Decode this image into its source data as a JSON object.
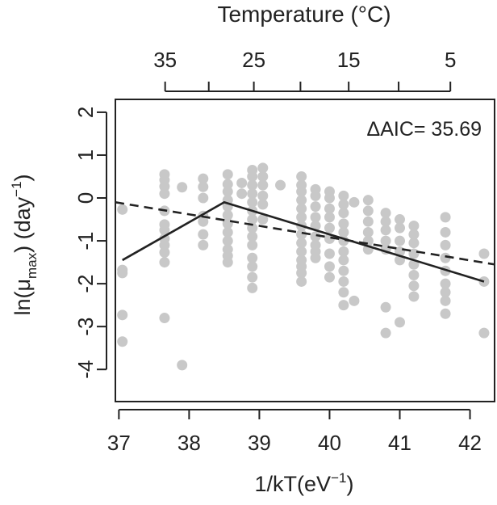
{
  "chart_data": {
    "type": "scatter",
    "title": "",
    "top_axis_label": "Temperature (°C)",
    "top_ticks": [
      "35",
      "25",
      "15",
      "5"
    ],
    "xlabel_main": "1/kT(eV",
    "xlabel_sup": "−1",
    "xlabel_close": ")",
    "ylabel_main": "ln(μ",
    "ylabel_sub": "max",
    "ylabel_mid": ") (day",
    "ylabel_sup": "−1",
    "ylabel_close": ")",
    "annotation": "ΔAIC= 35.69",
    "xlim": [
      36.95,
      42.35
    ],
    "ylim": [
      -4.75,
      2.3
    ],
    "x_ticks": [
      37,
      38,
      39,
      40,
      41,
      42
    ],
    "y_ticks": [
      2,
      1,
      0,
      -1,
      -2,
      -3,
      -4
    ],
    "points_color": "#c8c8c8",
    "line_color": "#222222",
    "points": [
      [
        37.05,
        -0.27
      ],
      [
        37.05,
        -1.68
      ],
      [
        37.05,
        -1.75
      ],
      [
        37.05,
        -2.73
      ],
      [
        37.05,
        -3.35
      ],
      [
        37.65,
        0.55
      ],
      [
        37.65,
        0.42
      ],
      [
        37.65,
        0.27
      ],
      [
        37.65,
        0.1
      ],
      [
        37.65,
        -0.3
      ],
      [
        37.65,
        -0.62
      ],
      [
        37.65,
        -0.75
      ],
      [
        37.65,
        -0.95
      ],
      [
        37.65,
        -1.1
      ],
      [
        37.65,
        -1.27
      ],
      [
        37.65,
        -1.5
      ],
      [
        37.65,
        -2.8
      ],
      [
        37.9,
        0.25
      ],
      [
        37.9,
        -3.9
      ],
      [
        38.2,
        0.45
      ],
      [
        38.2,
        0.26
      ],
      [
        38.2,
        0.0
      ],
      [
        38.2,
        -0.42
      ],
      [
        38.2,
        -0.55
      ],
      [
        38.2,
        -0.85
      ],
      [
        38.2,
        -1.1
      ],
      [
        38.55,
        0.55
      ],
      [
        38.55,
        0.32
      ],
      [
        38.55,
        0.15
      ],
      [
        38.55,
        -0.05
      ],
      [
        38.55,
        -0.2
      ],
      [
        38.55,
        -0.4
      ],
      [
        38.55,
        -0.6
      ],
      [
        38.55,
        -0.8
      ],
      [
        38.55,
        -1.0
      ],
      [
        38.55,
        -1.2
      ],
      [
        38.55,
        -1.35
      ],
      [
        38.55,
        -1.5
      ],
      [
        38.75,
        0.35
      ],
      [
        38.75,
        0.1
      ],
      [
        38.9,
        0.65
      ],
      [
        38.9,
        0.5
      ],
      [
        38.9,
        0.3
      ],
      [
        38.9,
        0.1
      ],
      [
        38.9,
        -0.1
      ],
      [
        38.9,
        -0.3
      ],
      [
        38.9,
        -0.5
      ],
      [
        38.9,
        -0.7
      ],
      [
        38.9,
        -0.9
      ],
      [
        38.9,
        -1.1
      ],
      [
        38.9,
        -1.4
      ],
      [
        38.9,
        -1.6
      ],
      [
        38.9,
        -1.85
      ],
      [
        38.9,
        -2.1
      ],
      [
        39.05,
        0.7
      ],
      [
        39.05,
        0.5
      ],
      [
        39.05,
        0.3
      ],
      [
        39.05,
        0.05
      ],
      [
        39.05,
        -0.15
      ],
      [
        39.05,
        -0.5
      ],
      [
        39.3,
        0.3
      ],
      [
        39.6,
        0.5
      ],
      [
        39.6,
        0.3
      ],
      [
        39.6,
        0.15
      ],
      [
        39.6,
        -0.05
      ],
      [
        39.6,
        -0.25
      ],
      [
        39.6,
        -0.45
      ],
      [
        39.6,
        -0.65
      ],
      [
        39.6,
        -0.85
      ],
      [
        39.6,
        -1.05
      ],
      [
        39.6,
        -1.25
      ],
      [
        39.6,
        -1.45
      ],
      [
        39.6,
        -1.6
      ],
      [
        39.6,
        -1.75
      ],
      [
        39.6,
        -1.95
      ],
      [
        39.8,
        0.2
      ],
      [
        39.8,
        0.05
      ],
      [
        39.8,
        -0.2
      ],
      [
        39.8,
        -0.45
      ],
      [
        39.8,
        -0.65
      ],
      [
        39.8,
        -0.9
      ],
      [
        39.8,
        -1.1
      ],
      [
        39.8,
        -1.25
      ],
      [
        39.8,
        -1.4
      ],
      [
        40.0,
        0.15
      ],
      [
        40.0,
        0.0
      ],
      [
        40.0,
        -0.25
      ],
      [
        40.0,
        -0.45
      ],
      [
        40.0,
        -0.7
      ],
      [
        40.0,
        -0.95
      ],
      [
        40.0,
        -1.3
      ],
      [
        40.0,
        -1.6
      ],
      [
        40.0,
        -1.85
      ],
      [
        40.2,
        0.05
      ],
      [
        40.2,
        -0.15
      ],
      [
        40.2,
        -0.35
      ],
      [
        40.2,
        -0.6
      ],
      [
        40.2,
        -0.8
      ],
      [
        40.2,
        -1.0
      ],
      [
        40.2,
        -1.25
      ],
      [
        40.2,
        -1.45
      ],
      [
        40.2,
        -1.7
      ],
      [
        40.2,
        -1.95
      ],
      [
        40.2,
        -2.2
      ],
      [
        40.2,
        -2.5
      ],
      [
        40.35,
        -0.1
      ],
      [
        40.35,
        -2.4
      ],
      [
        40.55,
        -0.05
      ],
      [
        40.55,
        -0.3
      ],
      [
        40.55,
        -0.55
      ],
      [
        40.55,
        -0.8
      ],
      [
        40.55,
        -1.0
      ],
      [
        40.55,
        -1.2
      ],
      [
        40.8,
        -0.35
      ],
      [
        40.8,
        -0.55
      ],
      [
        40.8,
        -0.75
      ],
      [
        40.8,
        -1.0
      ],
      [
        40.8,
        -1.2
      ],
      [
        40.8,
        -2.55
      ],
      [
        40.8,
        -3.15
      ],
      [
        41.0,
        -0.5
      ],
      [
        41.0,
        -0.7
      ],
      [
        41.0,
        -1.0
      ],
      [
        41.0,
        -1.25
      ],
      [
        41.0,
        -1.45
      ],
      [
        41.0,
        -2.9
      ],
      [
        41.2,
        -0.65
      ],
      [
        41.2,
        -0.85
      ],
      [
        41.2,
        -1.05
      ],
      [
        41.2,
        -1.3
      ],
      [
        41.2,
        -1.55
      ],
      [
        41.2,
        -1.8
      ],
      [
        41.2,
        -2.05
      ],
      [
        41.2,
        -2.3
      ],
      [
        41.65,
        -0.45
      ],
      [
        41.65,
        -0.8
      ],
      [
        41.65,
        -1.1
      ],
      [
        41.65,
        -1.4
      ],
      [
        41.65,
        -1.7
      ],
      [
        41.65,
        -2.0
      ],
      [
        41.65,
        -2.2
      ],
      [
        41.65,
        -2.4
      ],
      [
        41.65,
        -2.7
      ],
      [
        42.2,
        -1.3
      ],
      [
        42.2,
        -1.95
      ],
      [
        42.2,
        -3.15
      ]
    ],
    "series": [
      {
        "style": "dashed",
        "x": [
          36.95,
          42.35
        ],
        "y": [
          -0.1,
          -1.55
        ]
      },
      {
        "style": "solid",
        "x": [
          37.05,
          38.5,
          42.2
        ],
        "y": [
          -1.45,
          -0.1,
          -1.95
        ]
      }
    ]
  }
}
